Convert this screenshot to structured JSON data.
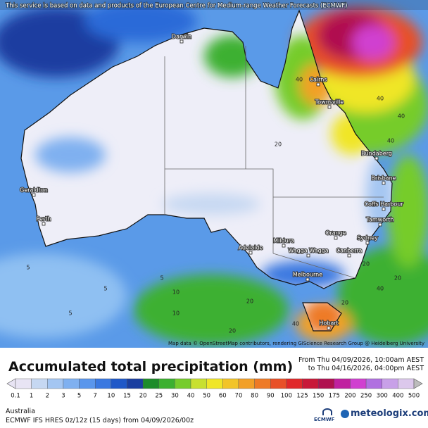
{
  "header": {
    "attribution": "This service is based on data and products of the European Centre for Medium-range Weather Forecasts (ECMWF)"
  },
  "map": {
    "region": "Australia",
    "cities": [
      "Darwin",
      "Cairns",
      "Townsville",
      "Bundaberg",
      "Brisbane",
      "Coffs Harbour",
      "Tamworth",
      "Orange",
      "Sydney",
      "Canberra",
      "Wagga Wagga",
      "Mildura",
      "Adelaide",
      "Melbourne",
      "Hobart",
      "Geraldton",
      "Perth"
    ],
    "contour_labels": [
      "40",
      "40",
      "40",
      "20",
      "40",
      "20",
      "20",
      "40",
      "20",
      "10",
      "5",
      "5",
      "5",
      "20",
      "40",
      "20",
      "10",
      "5"
    ],
    "map_credit": "Map data © OpenStreetMap contributors, rendering GIScience Research Group @ Heidelberg University"
  },
  "footer": {
    "title": "Accumulated total precipitation (mm)",
    "period_from": "From Thu 04/09/2026, 10:00am AEST",
    "period_to": "to Thu 04/16/2026, 04:00pm AEST",
    "legend": {
      "levels": [
        0.1,
        1,
        2,
        3,
        5,
        7,
        10,
        15,
        20,
        25,
        30,
        40,
        50,
        60,
        70,
        80,
        90,
        100,
        125,
        150,
        175,
        200,
        250,
        300,
        400,
        500
      ],
      "colors": [
        "#e8e4f4",
        "#c6d8f2",
        "#a4c6f2",
        "#7fb0f0",
        "#5a96ec",
        "#3a78e0",
        "#1f58c8",
        "#1a3ea0",
        "#1d8c2a",
        "#3cb030",
        "#76cc2c",
        "#c8e030",
        "#f0e628",
        "#f2c428",
        "#f2a028",
        "#ee7a26",
        "#e85028",
        "#e0282a",
        "#c81838",
        "#b01050",
        "#c020a0",
        "#d040d0",
        "#b070e0",
        "#c8a0e8",
        "#dcc8ec",
        "#bcbcbc"
      ]
    },
    "region": "Australia",
    "model": "ECMWF IFS HRES 0z/12z (15 days) from 04/09/2026/00z",
    "logo_left": "ECMWF",
    "logo_right": "meteologix.com"
  }
}
